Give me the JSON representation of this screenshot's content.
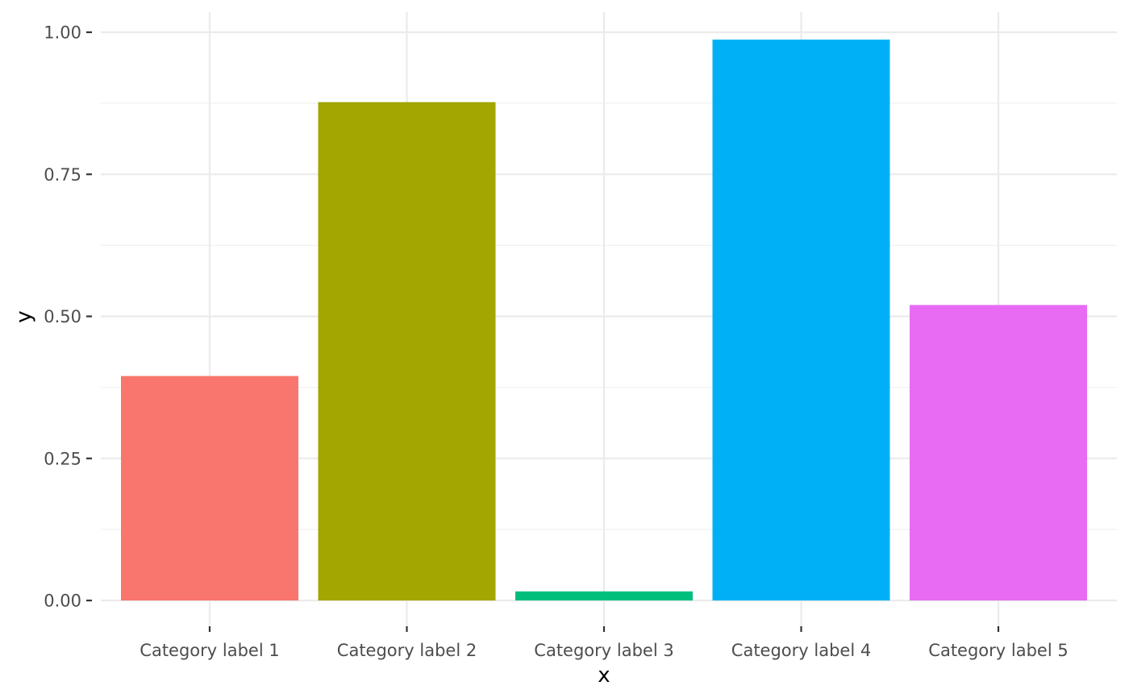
{
  "chart_data": {
    "type": "bar",
    "categories": [
      "Category label 1",
      "Category label 2",
      "Category label 3",
      "Category label 4",
      "Category label 5"
    ],
    "values": [
      0.395,
      0.877,
      0.016,
      0.987,
      0.52
    ],
    "colors": [
      "#F8766D",
      "#A3A500",
      "#00BF7D",
      "#00B0F6",
      "#E76BF3"
    ],
    "xlabel": "x",
    "ylabel": "y",
    "ylim": [
      0,
      1.0
    ],
    "yticks": [
      0,
      0.25,
      0.5,
      0.75,
      1.0
    ],
    "ytick_labels": [
      "0.00",
      "0.25",
      "0.50",
      "0.75",
      "1.00"
    ],
    "grid": true,
    "legend": "none"
  }
}
